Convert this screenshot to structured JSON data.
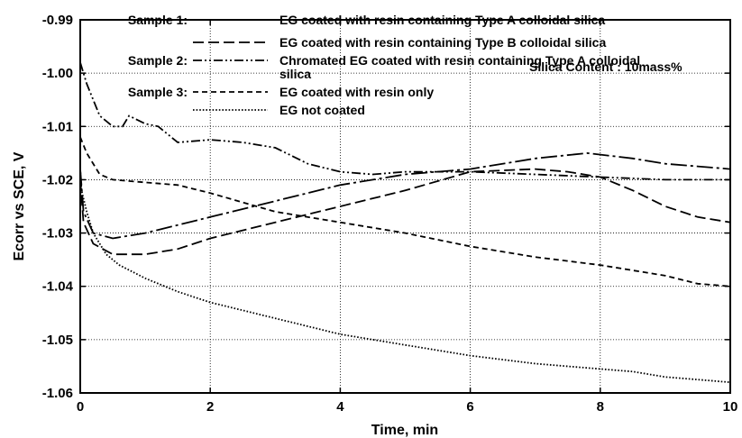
{
  "chart_data": {
    "type": "line",
    "xlabel": "Time, min",
    "ylabel": "Ecorr vs SCE, V",
    "xlim": [
      0,
      10
    ],
    "ylim": [
      -1.06,
      -0.99
    ],
    "xticks": [
      "0",
      "2",
      "4",
      "6",
      "8",
      "10"
    ],
    "yticks": [
      "-0.99",
      "-1.00",
      "-1.01",
      "-1.02",
      "-1.03",
      "-1.04",
      "-1.05",
      "-1.06"
    ],
    "grid": true,
    "annotation": "Silica Content : 10mass%",
    "legend_placement": "top",
    "legend_groups": [
      {
        "group": "Sample 1:",
        "entries": [
          "EG coated with resin containing Type A colloidal silica",
          "EG coated with resin containing Type B colloidal silica"
        ]
      },
      {
        "group": "Sample 2:",
        "entries": [
          "Chromated EG coated with resin containing Type A colloidal silica"
        ]
      },
      {
        "group": "Sample 3:",
        "entries": [
          "EG coated with resin only",
          "EG not coated"
        ]
      }
    ],
    "series": [
      {
        "name": "EG coated with resin containing Type A colloidal silica",
        "dash": "long-dash-dot",
        "x": [
          0,
          0.05,
          0.2,
          0.5,
          1,
          2,
          3,
          4,
          5,
          6,
          7,
          7.8,
          8.5,
          9,
          9.5,
          10
        ],
        "y": [
          -1.018,
          -1.026,
          -1.03,
          -1.031,
          -1.03,
          -1.027,
          -1.024,
          -1.021,
          -1.019,
          -1.018,
          -1.016,
          -1.015,
          -1.016,
          -1.017,
          -1.0175,
          -1.018
        ]
      },
      {
        "name": "EG coated with resin containing Type B colloidal silica",
        "dash": "long-dash",
        "x": [
          0,
          0.05,
          0.2,
          0.5,
          1,
          1.5,
          2,
          3,
          4,
          5,
          6,
          7,
          7.5,
          8,
          8.5,
          9,
          9.5,
          10
        ],
        "y": [
          -1.02,
          -1.028,
          -1.032,
          -1.034,
          -1.034,
          -1.033,
          -1.031,
          -1.028,
          -1.025,
          -1.022,
          -1.0185,
          -1.018,
          -1.0185,
          -1.0195,
          -1.022,
          -1.025,
          -1.027,
          -1.028
        ]
      },
      {
        "name": "Chromated EG coated with resin containing Type A colloidal silica",
        "dash": "dash-dot-dot",
        "x": [
          0,
          0.1,
          0.3,
          0.5,
          0.65,
          0.75,
          1,
          1.2,
          1.5,
          2,
          2.5,
          3,
          3.5,
          4,
          4.5,
          5,
          6,
          7,
          8,
          9,
          10
        ],
        "y": [
          -0.998,
          -1.002,
          -1.008,
          -1.01,
          -1.01,
          -1.008,
          -1.0095,
          -1.01,
          -1.013,
          -1.0125,
          -1.013,
          -1.014,
          -1.017,
          -1.0185,
          -1.019,
          -1.0185,
          -1.0185,
          -1.019,
          -1.0195,
          -1.02,
          -1.02
        ]
      },
      {
        "name": "EG coated with resin only",
        "dash": "dash",
        "x": [
          0,
          0.1,
          0.3,
          0.5,
          1,
          1.5,
          2,
          3,
          4,
          5,
          6,
          7,
          8,
          9,
          9.5,
          10
        ],
        "y": [
          -1.012,
          -1.015,
          -1.019,
          -1.02,
          -1.0205,
          -1.021,
          -1.0225,
          -1.026,
          -1.028,
          -1.03,
          -1.0325,
          -1.0345,
          -1.036,
          -1.038,
          -1.0395,
          -1.04
        ]
      },
      {
        "name": "EG not coated",
        "dash": "dotted",
        "x": [
          0,
          0.02,
          0.1,
          0.2,
          0.4,
          0.6,
          1,
          1.5,
          2,
          3,
          4,
          5,
          6,
          7,
          8,
          8.5,
          9,
          9.5,
          10
        ],
        "y": [
          -1.018,
          -1.022,
          -1.026,
          -1.03,
          -1.034,
          -1.036,
          -1.0385,
          -1.041,
          -1.043,
          -1.046,
          -1.049,
          -1.051,
          -1.053,
          -1.0545,
          -1.0555,
          -1.056,
          -1.057,
          -1.0575,
          -1.058
        ]
      }
    ]
  }
}
